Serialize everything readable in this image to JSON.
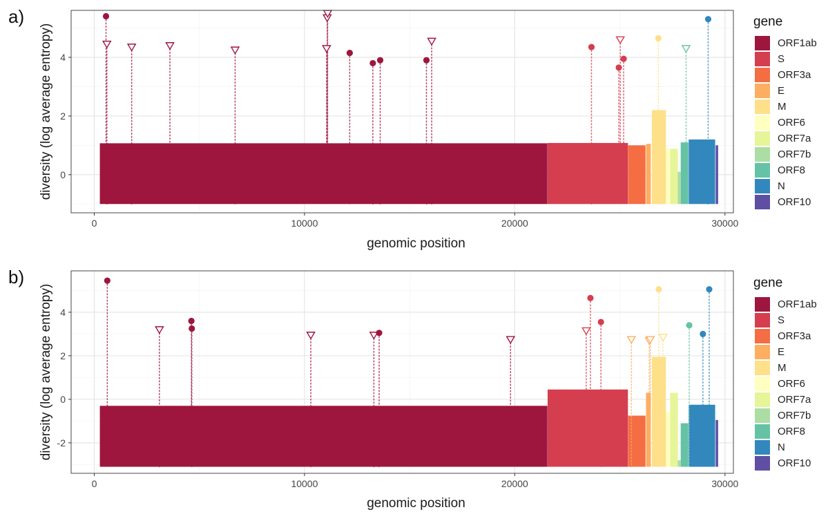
{
  "colors": {
    "ORF1ab": "#9E163E",
    "S": "#D53E4F",
    "ORF3a": "#F46D43",
    "E": "#FDAE61",
    "M": "#FEE08B",
    "ORF6": "#FFFFBF",
    "ORF7a": "#E6F598",
    "ORF7b": "#ABDDA4",
    "ORF8": "#66C2A5",
    "N": "#3288BD",
    "ORF10": "#5E4FA2"
  },
  "chart_data": [
    {
      "type": "bar",
      "panel_label": "a)",
      "xlabel": "genomic position",
      "ylabel": "diversity (log average entropy)",
      "xlim": [
        -1100,
        30400
      ],
      "ylim": [
        -1.3,
        5.6
      ],
      "x_ticks": [
        0,
        10000,
        20000,
        30000
      ],
      "x_tick_labels": [
        "0",
        "10000",
        "20000",
        "30000"
      ],
      "y_ticks": [
        0,
        2,
        4
      ],
      "y_tick_labels": [
        "0",
        "2",
        "4"
      ],
      "bar_base": -1.0,
      "grid": true,
      "legend_title": "gene",
      "legend_position": "right",
      "genes": [
        {
          "gene": "ORF1ab",
          "start": 266,
          "end": 21555,
          "value": 1.07
        },
        {
          "gene": "S",
          "start": 21563,
          "end": 25384,
          "value": 1.08
        },
        {
          "gene": "ORF3a",
          "start": 25393,
          "end": 26220,
          "value": 1.0
        },
        {
          "gene": "E",
          "start": 26245,
          "end": 26472,
          "value": 1.05
        },
        {
          "gene": "M",
          "start": 26523,
          "end": 27191,
          "value": 2.2
        },
        {
          "gene": "ORF6",
          "start": 27202,
          "end": 27387,
          "value": 0.9
        },
        {
          "gene": "ORF7a",
          "start": 27394,
          "end": 27759,
          "value": 0.88
        },
        {
          "gene": "ORF7b",
          "start": 27756,
          "end": 27887,
          "value": 0.1
        },
        {
          "gene": "ORF8",
          "start": 27894,
          "end": 28259,
          "value": 1.1
        },
        {
          "gene": "N",
          "start": 28274,
          "end": 29533,
          "value": 1.2
        },
        {
          "gene": "ORF10",
          "start": 29558,
          "end": 29674,
          "value": 1.0
        }
      ],
      "points": [
        {
          "gene": "ORF1ab",
          "x": 560,
          "y": 5.4,
          "shape": "circle"
        },
        {
          "gene": "ORF1ab",
          "x": 600,
          "y": 4.45,
          "shape": "triangle"
        },
        {
          "gene": "ORF1ab",
          "x": 1780,
          "y": 4.35,
          "shape": "triangle"
        },
        {
          "gene": "ORF1ab",
          "x": 3600,
          "y": 4.4,
          "shape": "triangle"
        },
        {
          "gene": "ORF1ab",
          "x": 6700,
          "y": 4.25,
          "shape": "triangle"
        },
        {
          "gene": "ORF1ab",
          "x": 11050,
          "y": 4.3,
          "shape": "triangle"
        },
        {
          "gene": "ORF1ab",
          "x": 11080,
          "y": 5.35,
          "shape": "triangle"
        },
        {
          "gene": "ORF1ab",
          "x": 11100,
          "y": 5.5,
          "shape": "triangle"
        },
        {
          "gene": "ORF1ab",
          "x": 12150,
          "y": 4.15,
          "shape": "circle"
        },
        {
          "gene": "ORF1ab",
          "x": 13250,
          "y": 3.8,
          "shape": "circle"
        },
        {
          "gene": "ORF1ab",
          "x": 13600,
          "y": 3.9,
          "shape": "circle"
        },
        {
          "gene": "ORF1ab",
          "x": 15800,
          "y": 3.9,
          "shape": "circle"
        },
        {
          "gene": "ORF1ab",
          "x": 16050,
          "y": 4.55,
          "shape": "triangle"
        },
        {
          "gene": "S",
          "x": 23650,
          "y": 4.35,
          "shape": "circle"
        },
        {
          "gene": "S",
          "x": 24950,
          "y": 3.65,
          "shape": "circle"
        },
        {
          "gene": "S",
          "x": 25020,
          "y": 4.6,
          "shape": "triangle"
        },
        {
          "gene": "S",
          "x": 25180,
          "y": 3.95,
          "shape": "circle"
        },
        {
          "gene": "M",
          "x": 26830,
          "y": 4.65,
          "shape": "circle"
        },
        {
          "gene": "ORF8",
          "x": 28150,
          "y": 4.3,
          "shape": "triangle"
        },
        {
          "gene": "N",
          "x": 29200,
          "y": 5.3,
          "shape": "circle"
        }
      ]
    },
    {
      "type": "bar",
      "panel_label": "b)",
      "xlabel": "genomic position",
      "ylabel": "diversity (log average entropy)",
      "xlim": [
        -1100,
        30400
      ],
      "ylim": [
        -3.4,
        5.9
      ],
      "x_ticks": [
        0,
        10000,
        20000,
        30000
      ],
      "x_tick_labels": [
        "0",
        "10000",
        "20000",
        "30000"
      ],
      "y_ticks": [
        -2,
        0,
        2,
        4
      ],
      "y_tick_labels": [
        "-2",
        "0",
        "2",
        "4"
      ],
      "bar_base": -3.1,
      "grid": true,
      "legend_title": "gene",
      "legend_position": "right",
      "genes": [
        {
          "gene": "ORF1ab",
          "start": 266,
          "end": 21555,
          "value": -0.3
        },
        {
          "gene": "S",
          "start": 21563,
          "end": 25384,
          "value": 0.45
        },
        {
          "gene": "ORF3a",
          "start": 25393,
          "end": 26220,
          "value": -0.75
        },
        {
          "gene": "E",
          "start": 26245,
          "end": 26472,
          "value": 0.3
        },
        {
          "gene": "M",
          "start": 26523,
          "end": 27191,
          "value": 1.95
        },
        {
          "gene": "ORF6",
          "start": 27202,
          "end": 27387,
          "value": -0.6
        },
        {
          "gene": "ORF7a",
          "start": 27394,
          "end": 27759,
          "value": 0.3
        },
        {
          "gene": "ORF7b",
          "start": 27756,
          "end": 27887,
          "value": -2.8
        },
        {
          "gene": "ORF8",
          "start": 27894,
          "end": 28259,
          "value": -1.1
        },
        {
          "gene": "N",
          "start": 28274,
          "end": 29533,
          "value": -0.25
        },
        {
          "gene": "ORF10",
          "start": 29558,
          "end": 29674,
          "value": -0.95
        }
      ],
      "points": [
        {
          "gene": "ORF1ab",
          "x": 620,
          "y": 5.45,
          "shape": "circle"
        },
        {
          "gene": "ORF1ab",
          "x": 3100,
          "y": 3.2,
          "shape": "triangle"
        },
        {
          "gene": "ORF1ab",
          "x": 4620,
          "y": 3.6,
          "shape": "circle"
        },
        {
          "gene": "ORF1ab",
          "x": 4640,
          "y": 3.25,
          "shape": "circle"
        },
        {
          "gene": "ORF1ab",
          "x": 10300,
          "y": 2.95,
          "shape": "triangle"
        },
        {
          "gene": "ORF1ab",
          "x": 13300,
          "y": 2.95,
          "shape": "triangle"
        },
        {
          "gene": "ORF1ab",
          "x": 13550,
          "y": 3.05,
          "shape": "circle"
        },
        {
          "gene": "ORF1ab",
          "x": 19800,
          "y": 2.75,
          "shape": "triangle"
        },
        {
          "gene": "S",
          "x": 23400,
          "y": 3.15,
          "shape": "triangle"
        },
        {
          "gene": "S",
          "x": 23600,
          "y": 4.65,
          "shape": "circle"
        },
        {
          "gene": "S",
          "x": 24100,
          "y": 3.55,
          "shape": "circle"
        },
        {
          "gene": "E",
          "x": 25550,
          "y": 2.75,
          "shape": "triangle"
        },
        {
          "gene": "E",
          "x": 26400,
          "y": 2.7,
          "shape": "triangle"
        },
        {
          "gene": "E",
          "x": 26450,
          "y": 2.75,
          "shape": "triangle"
        },
        {
          "gene": "M",
          "x": 26850,
          "y": 5.05,
          "shape": "circle"
        },
        {
          "gene": "M",
          "x": 27050,
          "y": 2.85,
          "shape": "triangle"
        },
        {
          "gene": "ORF8",
          "x": 28300,
          "y": 3.4,
          "shape": "circle"
        },
        {
          "gene": "N",
          "x": 28950,
          "y": 3.0,
          "shape": "circle"
        },
        {
          "gene": "N",
          "x": 29250,
          "y": 5.05,
          "shape": "circle"
        }
      ]
    }
  ]
}
